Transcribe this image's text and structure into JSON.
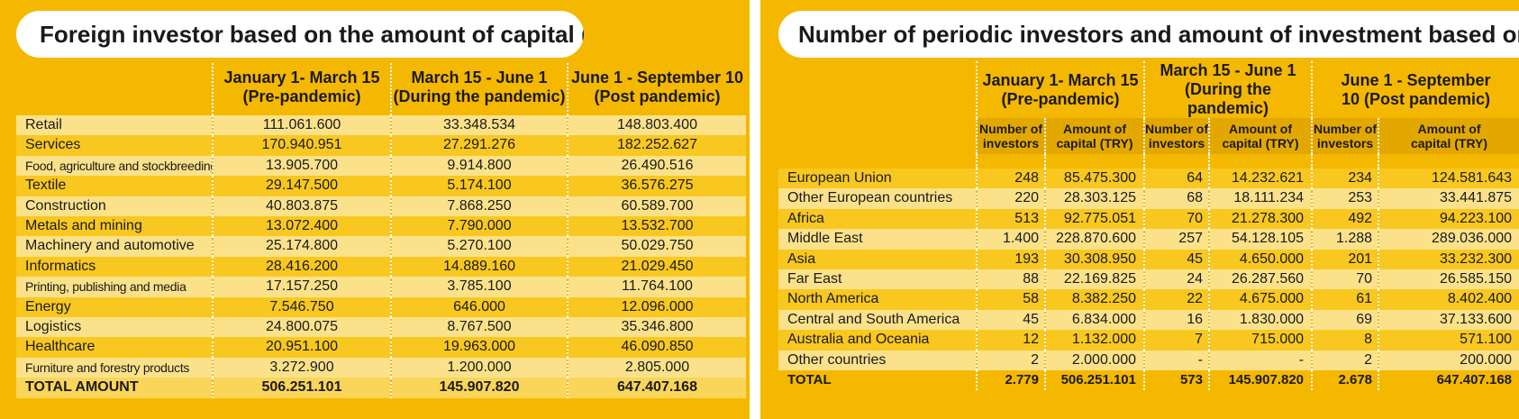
{
  "chart_data": [
    {
      "type": "table",
      "title": "Foreign investor based on the amount of capital (TRY)",
      "columns": [
        "January 1- March 15 (Pre-pandemic)",
        "March 15 - June 1 (During the pandemic)",
        "June 1 - September 10 (Post pandemic)"
      ],
      "column_lines": [
        [
          "January 1- March 15",
          "(Pre-pandemic)"
        ],
        [
          "March 15 - June 1",
          "(During the pandemic)"
        ],
        [
          "June 1 - September 10",
          "(Post pandemic)"
        ]
      ],
      "rows": [
        {
          "label": "Retail",
          "values": [
            "111.061.600",
            "33.348.534",
            "148.803.400"
          ]
        },
        {
          "label": "Services",
          "values": [
            "170.940.951",
            "27.291.276",
            "182.252.627"
          ]
        },
        {
          "label": "Food, agriculture and stockbreeding",
          "values": [
            "13.905.700",
            "9.914.800",
            "26.490.516"
          ]
        },
        {
          "label": "Textile",
          "values": [
            "29.147.500",
            "5.174.100",
            "36.576.275"
          ]
        },
        {
          "label": "Construction",
          "values": [
            "40.803.875",
            "7.868.250",
            "60.589.700"
          ]
        },
        {
          "label": "Metals and mining",
          "values": [
            "13.072.400",
            "7.790.000",
            "13.532.700"
          ]
        },
        {
          "label": "Machinery and automotive",
          "values": [
            "25.174.800",
            "5.270.100",
            "50.029.750"
          ]
        },
        {
          "label": "Informatics",
          "values": [
            "28.416.200",
            "14.889.160",
            "21.029.450"
          ]
        },
        {
          "label": "Printing, publishing and media",
          "values": [
            "17.157.250",
            "3.785.100",
            "11.764.100"
          ]
        },
        {
          "label": "Energy",
          "values": [
            "7.546.750",
            "646.000",
            "12.096.000"
          ]
        },
        {
          "label": "Logistics",
          "values": [
            "24.800.075",
            "8.767.500",
            "35.346.800"
          ]
        },
        {
          "label": "Healthcare",
          "values": [
            "20.951.100",
            "19.963.000",
            "46.090.850"
          ]
        },
        {
          "label": "Furniture and forestry products",
          "values": [
            "3.272.900",
            "1.200.000",
            "2.805.000"
          ]
        }
      ],
      "total": {
        "label": "TOTAL AMOUNT",
        "values": [
          "506.251.101",
          "145.907.820",
          "647.407.168"
        ]
      }
    },
    {
      "type": "table",
      "title": "Number of periodic investors and amount of investment based on country groups",
      "periods": [
        [
          "January 1- March 15",
          "(Pre-pandemic)"
        ],
        [
          "March 15 - June 1",
          "(During the pandemic)"
        ],
        [
          "June 1 - September",
          "10 (Post pandemic)"
        ]
      ],
      "subcolumns": [
        [
          "Number of",
          "investors"
        ],
        [
          "Amount of",
          "capital (TRY)"
        ]
      ],
      "rows": [
        {
          "label": "European Union",
          "values": [
            "248",
            "85.475.300",
            "64",
            "14.232.621",
            "234",
            "124.581.643"
          ]
        },
        {
          "label": "Other European countries",
          "values": [
            "220",
            "28.303.125",
            "68",
            "18.111.234",
            "253",
            "33.441.875"
          ]
        },
        {
          "label": "Africa",
          "values": [
            "513",
            "92.775.051",
            "70",
            "21.278.300",
            "492",
            "94.223.100"
          ]
        },
        {
          "label": "Middle East",
          "values": [
            "1.400",
            "228.870.600",
            "257",
            "54.128.105",
            "1.288",
            "289.036.000"
          ]
        },
        {
          "label": "Asia",
          "values": [
            "193",
            "30.308.950",
            "45",
            "4.650.000",
            "201",
            "33.232.300"
          ]
        },
        {
          "label": "Far East",
          "values": [
            "88",
            "22.169.825",
            "24",
            "26.287.560",
            "70",
            "26.585.150"
          ]
        },
        {
          "label": "North America",
          "values": [
            "58",
            "8.382.250",
            "22",
            "4.675.000",
            "61",
            "8.402.400"
          ]
        },
        {
          "label": "Central and South America",
          "values": [
            "45",
            "6.834.000",
            "16",
            "1.830.000",
            "69",
            "37.133.600"
          ]
        },
        {
          "label": "Australia and Oceania",
          "values": [
            "12",
            "1.132.000",
            "7",
            "715.000",
            "8",
            "571.100"
          ]
        },
        {
          "label": "Other countries",
          "values": [
            "2",
            "2.000.000",
            "-",
            "-",
            "2",
            "200.000"
          ]
        }
      ],
      "total": {
        "label": "TOTAL",
        "values": [
          "2.779",
          "506.251.101",
          "573",
          "145.907.820",
          "2.678",
          "647.407.168"
        ]
      }
    }
  ],
  "colors": {
    "background": "#f5b800",
    "row_light": "#fbe28a",
    "row_dark": "#f8c820",
    "text": "#1a1a1a"
  }
}
